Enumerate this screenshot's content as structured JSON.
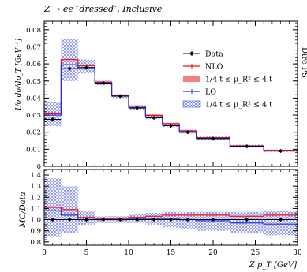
{
  "header": {
    "title": "Z → ee ″dressed″, Inclusive",
    "side_label": "Dire PS"
  },
  "chart_data": [
    {
      "type": "histogram",
      "name": "main",
      "ylabel": "1/σ dσ/dp_T [GeV⁻¹]",
      "ylim": [
        0,
        0.085
      ],
      "yticks": [
        "0",
        "0.01",
        "0.02",
        "0.03",
        "0.04",
        "0.05",
        "0.06",
        "0.07",
        "0.08"
      ],
      "xlim": [
        0,
        30
      ],
      "bin_edges": [
        0,
        2,
        4,
        6,
        8,
        10,
        12,
        14,
        16,
        18,
        22,
        26,
        30
      ],
      "series": [
        {
          "name": "Data",
          "color": "#000000",
          "values": [
            0.0275,
            0.0572,
            0.0578,
            0.0488,
            0.0411,
            0.0341,
            0.0284,
            0.0238,
            0.02,
            0.0162,
            0.0117,
            0.009
          ]
        },
        {
          "name": "NLO",
          "color": "#ee1111",
          "values": [
            0.0312,
            0.0625,
            0.059,
            0.0493,
            0.0415,
            0.0352,
            0.0298,
            0.025,
            0.0208,
            0.0168,
            0.012,
            0.0094
          ],
          "band_label": "1/4 t ≤ μ_R² ≤ 4 t",
          "band_low": [
            0.03,
            0.06,
            0.0578,
            0.0486,
            0.041,
            0.0345,
            0.029,
            0.0244,
            0.0203,
            0.0164,
            0.0117,
            0.0091
          ],
          "band_high": [
            0.0322,
            0.0645,
            0.0602,
            0.05,
            0.0421,
            0.0358,
            0.0305,
            0.0256,
            0.0213,
            0.0172,
            0.0123,
            0.0097
          ]
        },
        {
          "name": "LO",
          "color": "#1f2fe0",
          "values": [
            0.03,
            0.0595,
            0.0578,
            0.0488,
            0.0412,
            0.0344,
            0.0289,
            0.0242,
            0.0203,
            0.0164,
            0.0118,
            0.009
          ],
          "band_label": "1/4 t ≤ μ_R² ≤ 4 t",
          "band_low": [
            0.0235,
            0.05,
            0.055,
            0.0475,
            0.04,
            0.0332,
            0.0276,
            0.023,
            0.0192,
            0.0154,
            0.011,
            0.0084
          ],
          "band_high": [
            0.0378,
            0.0745,
            0.0625,
            0.0502,
            0.0422,
            0.0356,
            0.0302,
            0.0255,
            0.0215,
            0.0175,
            0.0127,
            0.0098
          ]
        }
      ],
      "legend_position": "top-right"
    },
    {
      "type": "ratio",
      "name": "ratio",
      "ylabel": "MC/Data",
      "xlabel": "Z p_T [GeV]",
      "ylim": [
        0.77,
        1.45
      ],
      "yticks": [
        "0.8",
        "0.9",
        "1.0",
        "1.1",
        "1.2",
        "1.3",
        "1.4"
      ],
      "xticks": [
        "0",
        "5",
        "10",
        "15",
        "20",
        "25",
        "30"
      ],
      "xlim": [
        0,
        30
      ],
      "bin_edges": [
        0,
        2,
        4,
        6,
        8,
        10,
        12,
        14,
        16,
        18,
        22,
        26,
        30
      ],
      "series": [
        {
          "name": "NLO",
          "color": "#ee1111",
          "values": [
            1.11,
            1.09,
            1.02,
            1.01,
            1.01,
            1.02,
            1.03,
            1.04,
            1.04,
            1.04,
            1.03,
            1.04
          ],
          "band_low": [
            1.08,
            1.05,
            1.0,
            0.99,
            1.0,
            1.01,
            1.02,
            1.02,
            1.02,
            1.01,
            1.0,
            1.01
          ],
          "band_high": [
            1.15,
            1.12,
            1.04,
            1.02,
            1.03,
            1.04,
            1.05,
            1.06,
            1.06,
            1.06,
            1.06,
            1.07
          ]
        },
        {
          "name": "LO",
          "color": "#1f2fe0",
          "values": [
            1.08,
            1.04,
            1.0,
            1.0,
            1.0,
            1.01,
            1.01,
            1.01,
            1.0,
            0.99,
            0.97,
            0.96
          ],
          "band_low": [
            0.85,
            0.88,
            0.95,
            0.97,
            0.97,
            0.97,
            0.95,
            0.93,
            0.92,
            0.9,
            0.88,
            0.86
          ],
          "band_high": [
            1.37,
            1.3,
            1.08,
            1.03,
            1.03,
            1.05,
            1.06,
            1.07,
            1.07,
            1.07,
            1.07,
            1.08
          ]
        },
        {
          "name": "Data",
          "color": "#000000",
          "values": [
            1.0,
            1.0,
            1.0,
            1.0,
            1.0,
            1.0,
            1.0,
            1.0,
            1.0,
            1.0,
            1.0,
            1.0
          ]
        }
      ]
    }
  ]
}
